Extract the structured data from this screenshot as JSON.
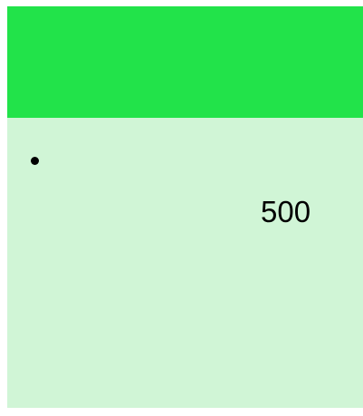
{
  "content": {
    "text": "500"
  }
}
